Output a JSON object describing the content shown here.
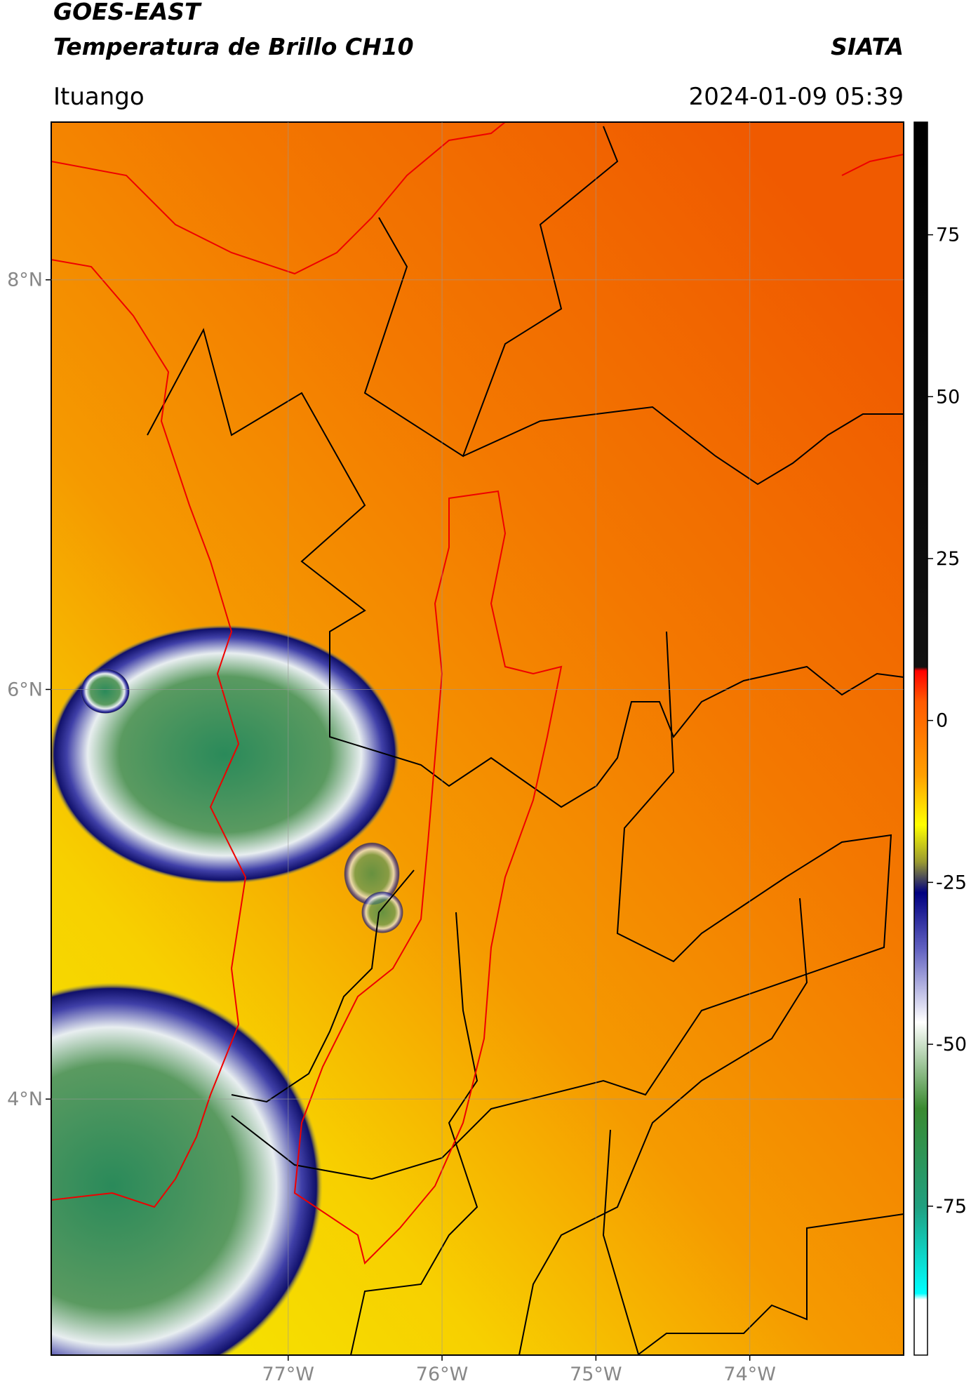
{
  "header": {
    "title": "GOES-EAST",
    "subtitle": "Temperatura de Brillo CH10",
    "source": "SIATA",
    "location": "Ituango",
    "datetime": "2024-01-09 05:39"
  },
  "map": {
    "lonlim": [
      -78.54,
      -73.0
    ],
    "latlim": [
      2.75,
      8.77
    ],
    "xticks": [
      {
        "value": -77,
        "label": "77°W"
      },
      {
        "value": -76,
        "label": "76°W"
      },
      {
        "value": -75,
        "label": "75°W"
      },
      {
        "value": -74,
        "label": "74°W"
      }
    ],
    "yticks": [
      {
        "value": 4,
        "label": "4°N"
      },
      {
        "value": 6,
        "label": "6°N"
      },
      {
        "value": 8,
        "label": "8°N"
      }
    ],
    "grid": true
  },
  "colorbar": {
    "lim": [
      -98,
      92.4
    ],
    "ticks": [
      -75,
      -50,
      -25,
      0,
      25,
      50,
      75
    ]
  }
}
